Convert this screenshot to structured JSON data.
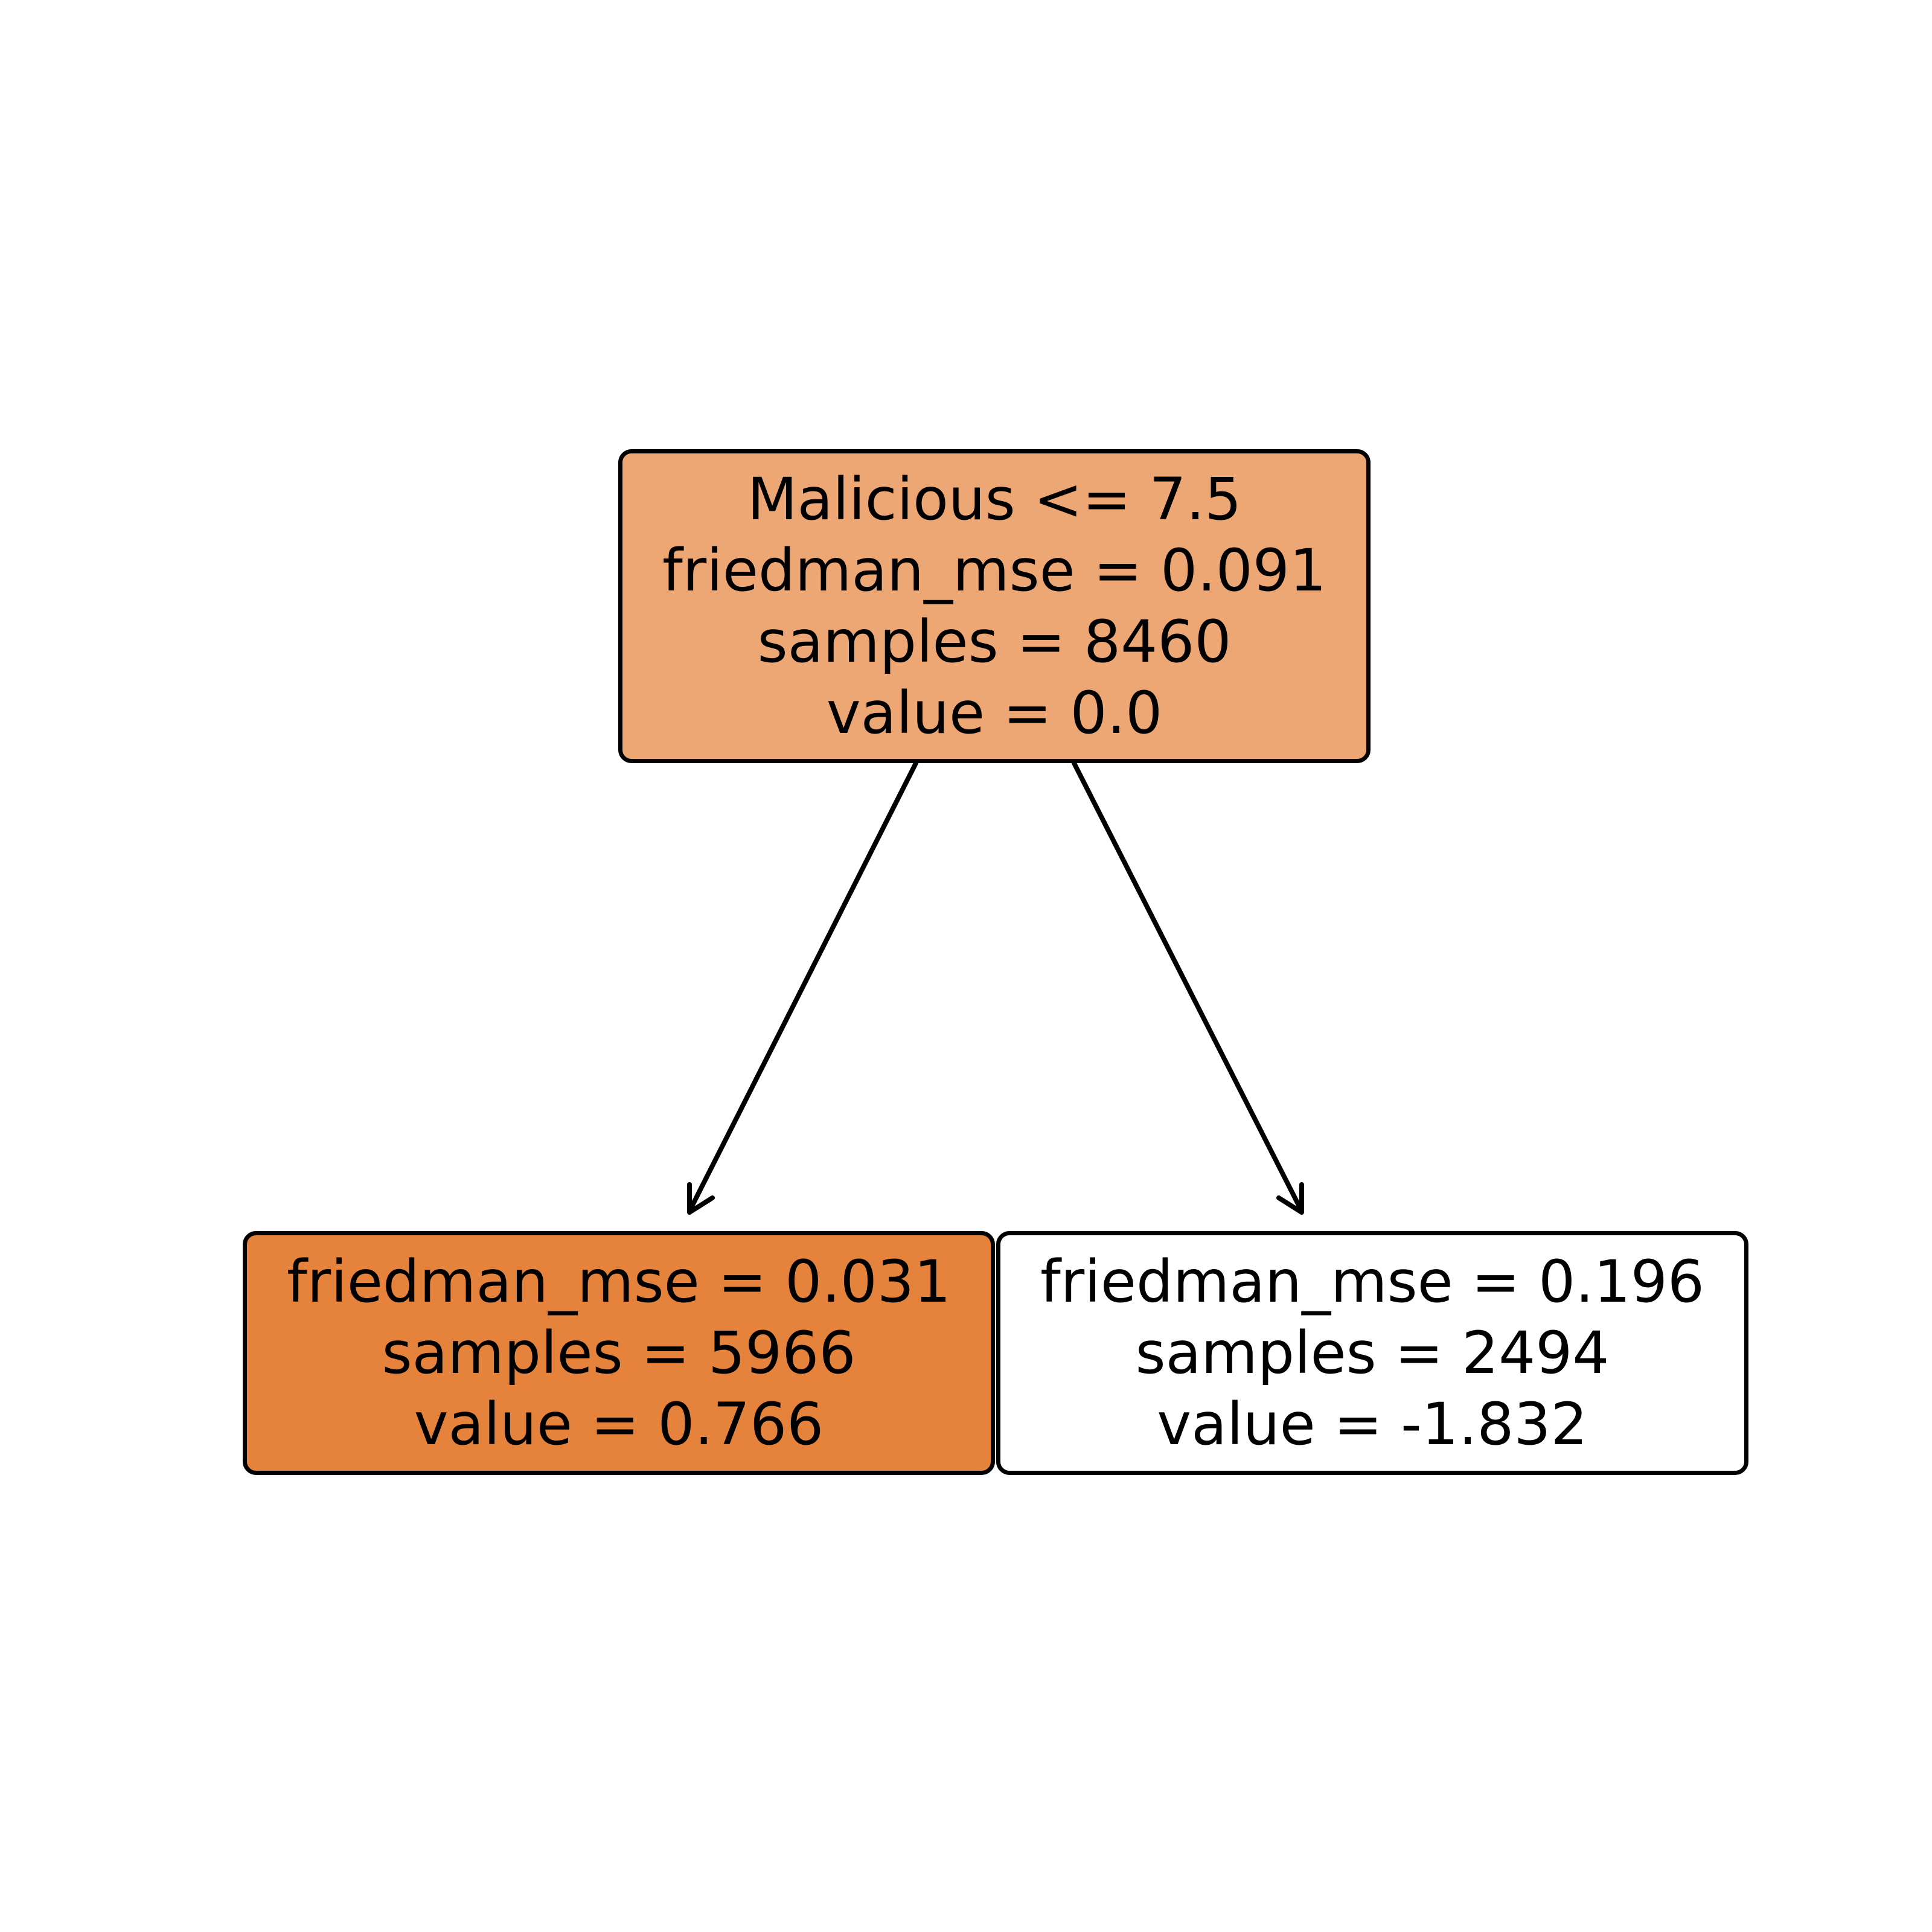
{
  "colors": {
    "background": "#ffffff",
    "border": "#000000",
    "root_fill": "#eda775",
    "left_fill": "#e5823b",
    "right_fill": "#ffffff"
  },
  "tree": {
    "root": {
      "lines": [
        "Malicious <= 7.5",
        "friedman_mse = 0.091",
        "samples = 8460",
        "value = 0.0"
      ],
      "fill": "#eda775"
    },
    "left": {
      "lines": [
        "friedman_mse = 0.031",
        "samples = 5966",
        "value = 0.766"
      ],
      "fill": "#e5823b"
    },
    "right": {
      "lines": [
        "friedman_mse = 0.196",
        "samples = 2494",
        "value = -1.832"
      ],
      "fill": "#ffffff"
    }
  }
}
